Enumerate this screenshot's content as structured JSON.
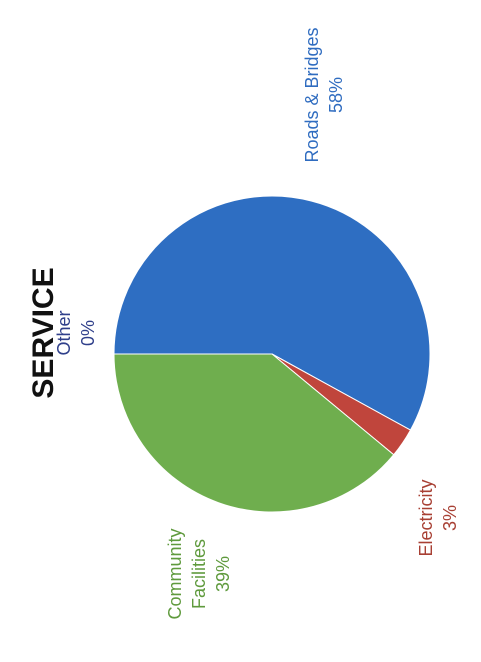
{
  "chart_data": {
    "type": "pie",
    "title": "SERVICE",
    "slices": [
      {
        "name": "Roads & Bridges",
        "value": 58,
        "label": "58%",
        "color": "#2e6ec2",
        "label_color": "#2f6cc0"
      },
      {
        "name": "Electricity",
        "value": 3,
        "label": "3%",
        "color": "#c0453c",
        "label_color": "#a84034"
      },
      {
        "name": "Community Facilities",
        "value": 39,
        "label": "39%",
        "color": "#6fae4e",
        "label_color": "#5f9a3d"
      },
      {
        "name": "Other",
        "value": 0,
        "label": "0%",
        "color": "#2f3f8a",
        "label_color": "#2f3f8a"
      }
    ]
  }
}
